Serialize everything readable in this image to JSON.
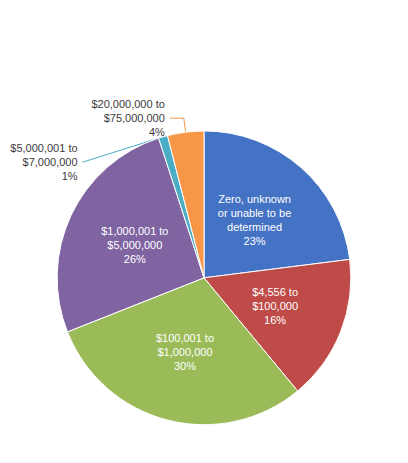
{
  "chart_data": {
    "type": "pie",
    "categories": [
      "Zero, unknown\nor unable to be\ndetermined",
      "$4,556 to\n$100,000",
      "$100,001 to\n$1,000,000",
      "$1,000,001 to\n$5,000,000",
      "$5,000,001 to\n$7,000,000",
      "$20,000,000 to\n$75,000,000"
    ],
    "values": [
      23,
      16,
      30,
      26,
      1,
      4
    ],
    "value_labels": [
      "23%",
      "16%",
      "30%",
      "26%",
      "1%",
      "4%"
    ],
    "colors": [
      "#4472C4",
      "#BE4B48",
      "#9BBB59",
      "#8064A2",
      "#4BACC6",
      "#F79646"
    ],
    "data_labels": true
  }
}
